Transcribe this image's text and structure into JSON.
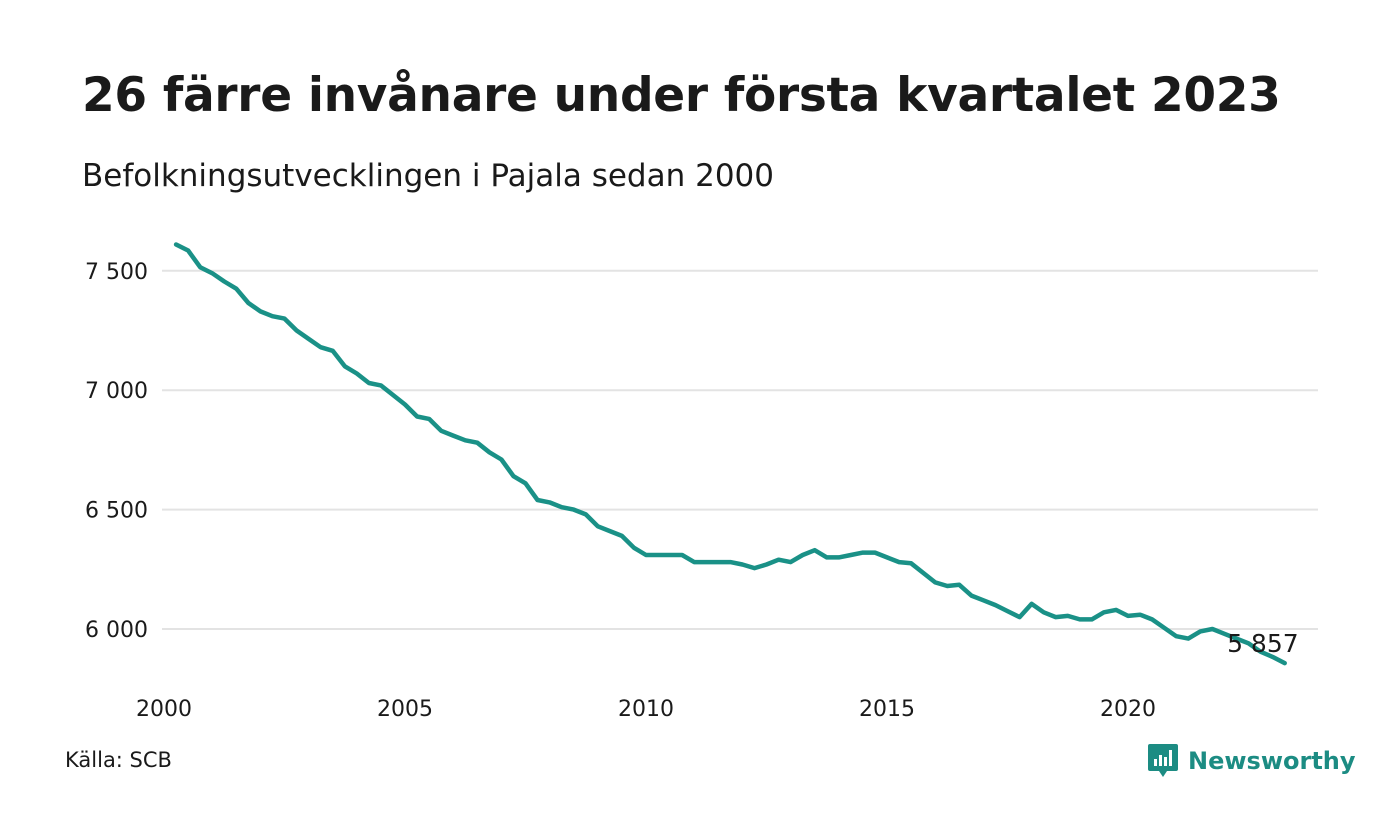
{
  "header": {
    "title": "26 färre invånare under första kvartalet 2023",
    "subtitle": "Befolkningsutvecklingen i Pajala sedan 2000"
  },
  "footer": {
    "source": "Källa: SCB",
    "brand": "Newsworthy",
    "brand_icon": "newsworthy-logo-icon"
  },
  "colors": {
    "line": "#1a9187",
    "grid": "#e3e3e3",
    "brand": "#1c8c83"
  },
  "chart_data": {
    "type": "line",
    "title": "26 färre invånare under första kvartalet 2023",
    "subtitle": "Befolkningsutvecklingen i Pajala sedan 2000",
    "xlabel": "",
    "ylabel": "",
    "xlim": [
      2000,
      2023.25
    ],
    "ylim": [
      5850,
      7620
    ],
    "x_ticks": [
      2000,
      2005,
      2010,
      2015,
      2020
    ],
    "x_tick_labels": [
      "2000",
      "2005",
      "2010",
      "2015",
      "2020"
    ],
    "y_ticks": [
      6000,
      6500,
      7000,
      7500
    ],
    "y_tick_labels": [
      "6 000",
      "6 500",
      "7 000",
      "7 500"
    ],
    "grid": "horizontal",
    "end_label": "5 857",
    "series": [
      {
        "x_start": 2000.25,
        "x_step": 0.25,
        "values": [
          7610,
          7585,
          7515,
          7490,
          7455,
          7425,
          7365,
          7330,
          7310,
          7300,
          7250,
          7215,
          7180,
          7165,
          7100,
          7070,
          7030,
          7020,
          6980,
          6940,
          6890,
          6880,
          6830,
          6810,
          6790,
          6780,
          6740,
          6710,
          6640,
          6610,
          6540,
          6530,
          6510,
          6500,
          6480,
          6430,
          6410,
          6390,
          6340,
          6310,
          6310,
          6310,
          6310,
          6280,
          6280,
          6280,
          6280,
          6270,
          6255,
          6270,
          6290,
          6280,
          6310,
          6330,
          6300,
          6300,
          6310,
          6320,
          6320,
          6300,
          6280,
          6275,
          6235,
          6195,
          6180,
          6185,
          6140,
          6120,
          6100,
          6075,
          6050,
          6105,
          6070,
          6050,
          6055,
          6040,
          6040,
          6070,
          6080,
          6055,
          6060,
          6040,
          6005,
          5970,
          5960,
          5990,
          6000,
          5980,
          5960,
          5940,
          5905,
          5883,
          5857
        ]
      }
    ]
  }
}
